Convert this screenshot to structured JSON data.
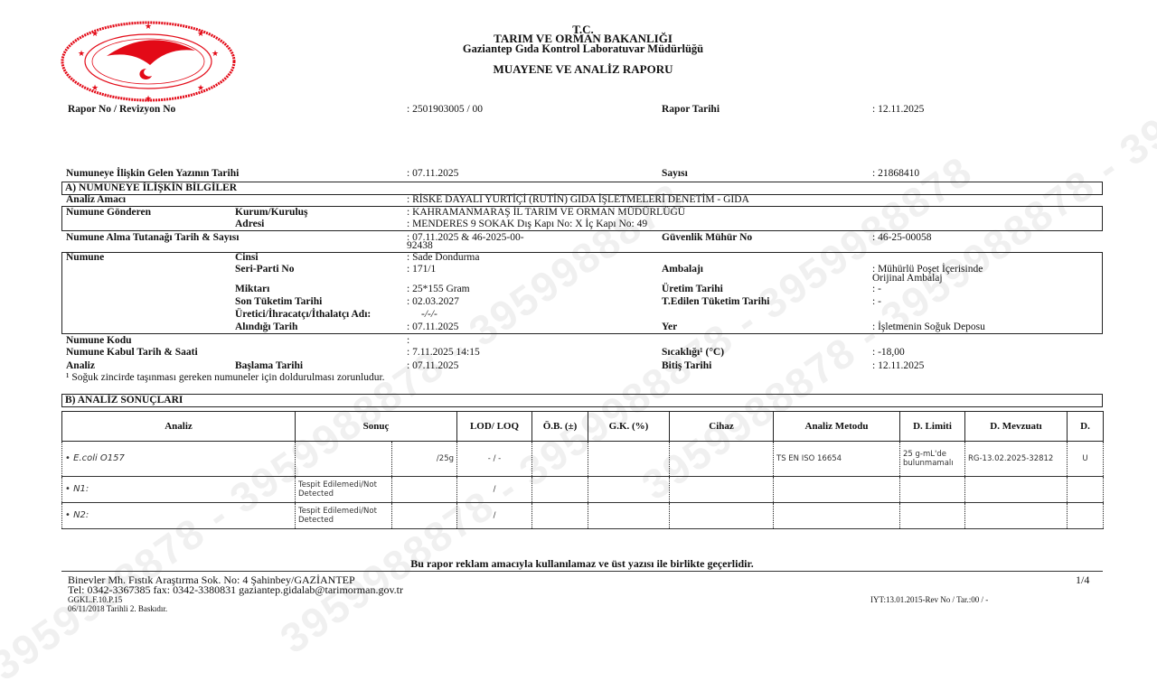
{
  "watermark": "3959988878 - 3959988878 - 3959988878",
  "header": {
    "line1": "T.C.",
    "line2": "TARIM VE ORMAN BAKANLIĞI",
    "line3": "Gaziantep Gıda Kontrol Laboratuvar Müdürlüğü",
    "title": "MUAYENE VE ANALİZ RAPORU",
    "logo_text": "TÜRKİYE CUMHURİYETİ TARIM VE ORMAN BAKANLIĞI",
    "logo_color": "#e30a17"
  },
  "report": {
    "no_label": "Rapor No / Revizyon No",
    "no_value": ": 2501903005 / 00",
    "date_label": "Rapor Tarihi",
    "date_value": ": 12.11.2025",
    "letter_date_label": "Numuneye İlişkin Gelen Yazının Tarihi",
    "letter_date_value": ": 07.11.2025",
    "count_label": "Sayısı",
    "count_value": ": 21868410"
  },
  "section_a": {
    "title": "A) NUMUNEYE İLİŞKİN BİLGİLER",
    "purpose_label": "Analiz Amacı",
    "purpose_value": ": RİSKE DAYALI YURTİÇİ (RUTİN) GIDA İŞLETMELERİ DENETİM - GIDA",
    "sender_label": "Numune Gönderen",
    "org_label": "Kurum/Kuruluş",
    "org_value": ": KAHRAMANMARAŞ İL TARIM VE ORMAN MÜDÜRLÜĞÜ",
    "address_label": "Adresi",
    "address_value": ": MENDERES 9 SOKAK Dış Kapı No: X İç Kapı No: 49",
    "sampling_label": "Numune Alma Tutanağı Tarih & Sayısı",
    "sampling_value1": ": 07.11.2025 & 46-2025-00-",
    "sampling_value2": "92438",
    "seal_label": "Güvenlik Mühür No",
    "seal_value": ": 46-25-00058",
    "sample_label": "Numune",
    "type_label": "Cinsi",
    "type_value": ": Sade Dondurma",
    "batch_label": "Seri-Parti No",
    "batch_value": ": 171/1",
    "package_label": "Ambalajı",
    "package_value1": ": Mühürlü Poşet İçerisinde",
    "package_value2": "Orijinal Ambalaj",
    "qty_label": "Miktarı",
    "qty_value": ": 25*155 Gram",
    "prod_label": "Üretim Tarihi",
    "prod_value": ": -",
    "expiry_label": "Son Tüketim Tarihi",
    "expiry_value": ": 02.03.2027",
    "rec_expiry_label": "T.Edilen Tüketim Tarihi",
    "rec_expiry_value": ": -",
    "producer_label": "Üretici/İhracatçı/İthalatçı Adı:",
    "producer_value": "-/-/-",
    "taken_label": "Alındığı   Tarih",
    "taken_value": ": 07.11.2025",
    "place_label": "Yer",
    "place_value": ": İşletmenin Soğuk Deposu",
    "code_label": "Numune Kodu",
    "code_value": ":",
    "accept_label": "Numune Kabul Tarih & Saati",
    "accept_value": ": 7.11.2025 14:15",
    "temp_label": "Sıcaklığı¹ (°C)",
    "temp_value": ": -18,00",
    "analysis_label": "Analiz",
    "start_label": "Başlama Tarihi",
    "start_value": ": 07.11.2025",
    "end_label": "Bitiş Tarihi",
    "end_value": ": 12.11.2025",
    "footnote": "¹ Soğuk zincirde taşınması gereken numuneler için doldurulması zorunludur."
  },
  "section_b": {
    "title": "B) ANALİZ SONUÇLARI",
    "columns": [
      "Analiz",
      "Sonuç",
      "LOD/ LOQ",
      "Ö.B. (±)",
      "G.K. (%)",
      "Cihaz",
      "Analiz Metodu",
      "D. Limiti",
      "D. Mevzuatı",
      "D."
    ],
    "rows": [
      {
        "analiz": "• E.coli O157",
        "sonuc": "",
        "birim": "/25g",
        "lod": "- / -",
        "ob": "",
        "gk": "",
        "cihaz": "",
        "metod": "TS EN  ISO 16654",
        "limit": "25 g-mL'de bulunmamalı",
        "mevzuat": "RG-13.02.2025-32812",
        "d": "U"
      },
      {
        "analiz": "• N1:",
        "sonuc": "Tespit Edilemedi/Not Detected",
        "birim": "",
        "lod": "/",
        "ob": "",
        "gk": "",
        "cihaz": "",
        "metod": "",
        "limit": "",
        "mevzuat": "",
        "d": ""
      },
      {
        "analiz": "• N2:",
        "sonuc": "Tespit Edilemedi/Not Detected",
        "birim": "",
        "lod": "/",
        "ob": "",
        "gk": "",
        "cihaz": "",
        "metod": "",
        "limit": "",
        "mevzuat": "",
        "d": ""
      }
    ]
  },
  "footer": {
    "notice": "Bu rapor reklam amacıyla kullanılamaz ve üst yazısı ile birlikte geçerlidir.",
    "address": "Binevler Mh. Fıstık Araştırma Sok. No: 4 Şahinbey/GAZİANTEP",
    "contact": "Tel: 0342-3367385 fax: 0342-3380831 gaziantep.gidalab@tarimorman.gov.tr",
    "page": "1/4",
    "form_code": "GGKL.F.10.P.15",
    "print": "06/11/2018 Tarihli 2. Baskıdır.",
    "revision": "IYT:13.01.2015-Rev No / Tar.:00 / -"
  }
}
